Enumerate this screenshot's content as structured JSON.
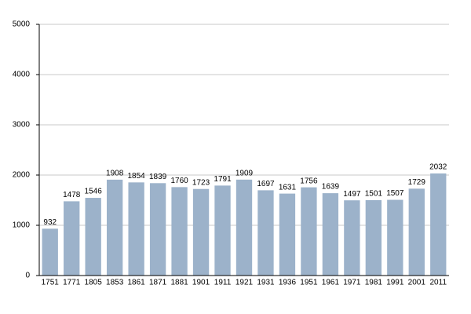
{
  "chart_data": {
    "type": "bar",
    "categories": [
      "1751",
      "1771",
      "1805",
      "1853",
      "1861",
      "1871",
      "1881",
      "1901",
      "1911",
      "1921",
      "1931",
      "1936",
      "1951",
      "1961",
      "1971",
      "1981",
      "1991",
      "2001",
      "2011"
    ],
    "values": [
      932,
      1478,
      1546,
      1908,
      1854,
      1839,
      1760,
      1723,
      1791,
      1909,
      1697,
      1631,
      1756,
      1639,
      1497,
      1501,
      1507,
      1729,
      2032
    ],
    "color": "#9cb2ca",
    "ylim": [
      0,
      5000
    ],
    "yticks": [
      0,
      1000,
      2000,
      3000,
      4000,
      5000
    ],
    "grid": true
  }
}
